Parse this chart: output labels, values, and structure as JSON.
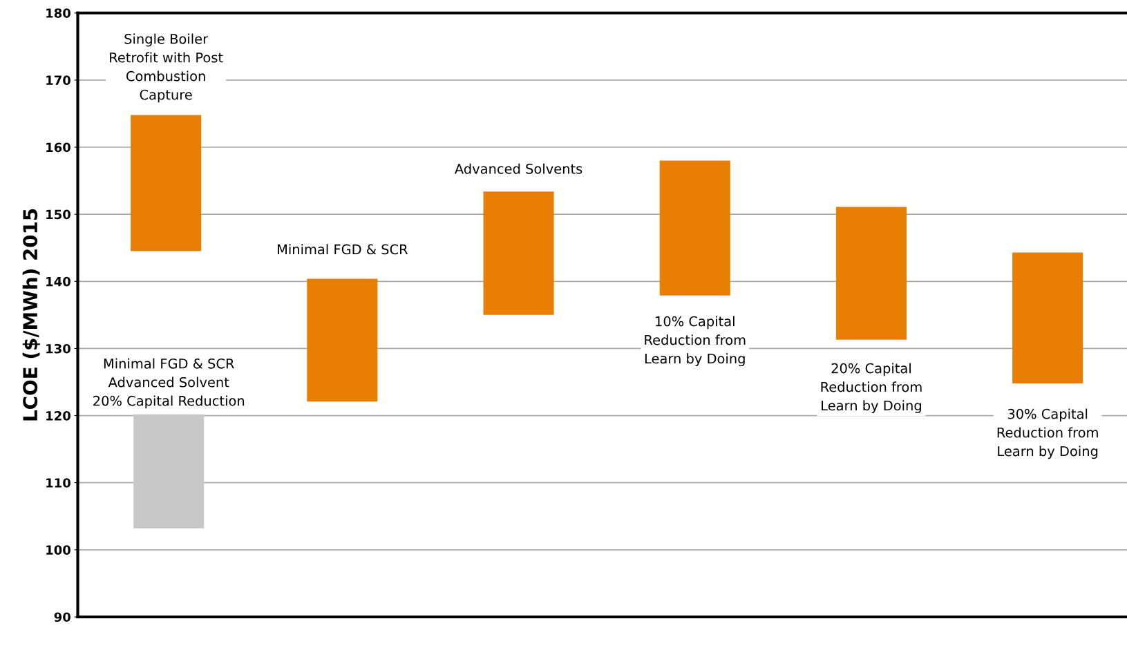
{
  "chart_data": {
    "type": "bar",
    "ylabel": "LCOE ($/MWh) 2015",
    "categories": [
      null,
      null,
      null,
      null,
      null,
      null
    ],
    "series": [
      {
        "color": "#e87e04",
        "values": [
          20.3,
          18.3,
          18.4,
          20.1,
          19.8,
          19.5
        ],
        "base": [
          144.5,
          122.1,
          135.0,
          137.9,
          131.3,
          124.8
        ]
      },
      {
        "color": "#c8c8c8",
        "values": [
          17.0,
          null,
          null,
          null,
          null,
          null
        ],
        "base": [
          103.2,
          null,
          null,
          null,
          null,
          null
        ]
      }
    ],
    "ylim": [
      90,
      180
    ],
    "yticks": [
      90,
      100,
      110,
      120,
      130,
      140,
      150,
      160,
      170,
      180
    ],
    "grid": "y",
    "annotations": [
      "Single Boiler\nRetrofit with Post\nCombustion\nCapture",
      "Minimal FGD & SCR\nAdvanced Solvent\n20% Capital Reduction",
      "Minimal FGD & SCR",
      "Advanced Solvents",
      "10% Capital\nReduction from\nLearn by Doing",
      "20% Capital\nReduction from\nLearn by Doing",
      "30% Capital\nReduction from\nLearn by Doing"
    ]
  }
}
